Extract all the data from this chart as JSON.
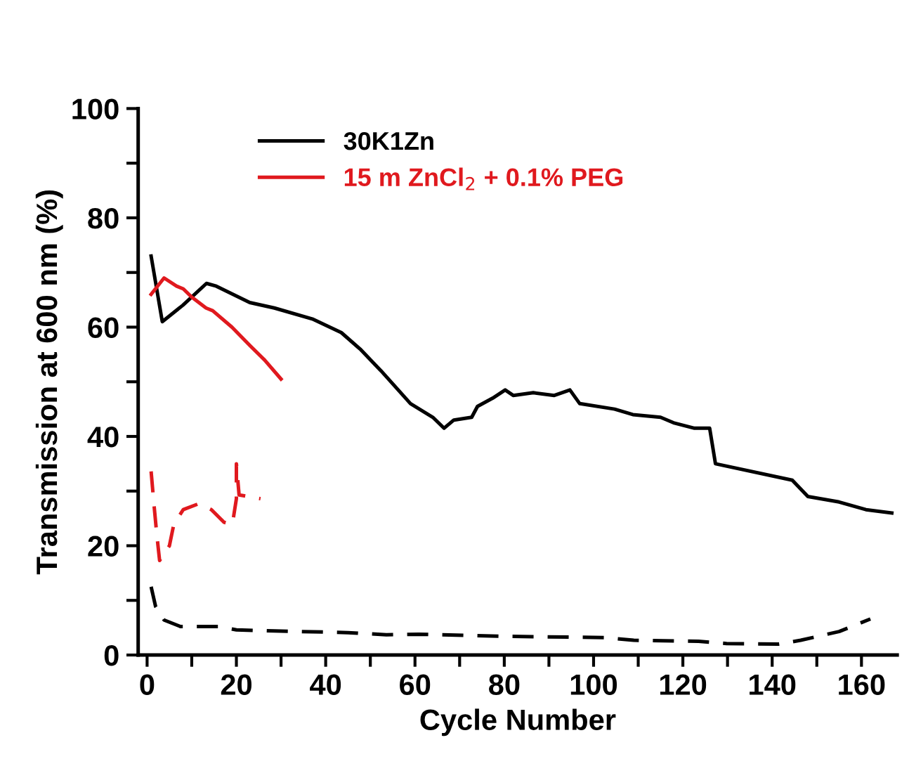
{
  "chart_data": {
    "type": "line",
    "xlabel": "Cycle Number",
    "ylabel": "Transmission at 600 nm (%)",
    "xlim": [
      -2,
      168
    ],
    "ylim": [
      0,
      100
    ],
    "xticks": [
      0,
      {
        "value": 10,
        "label": null
      },
      20,
      {
        "value": 30,
        "label": null
      },
      40,
      {
        "value": 50,
        "label": null
      },
      60,
      {
        "value": 70,
        "label": null
      },
      80,
      {
        "value": 90,
        "label": null
      },
      100,
      {
        "value": 110,
        "label": null
      },
      120,
      {
        "value": 130,
        "label": null
      },
      140,
      {
        "value": 150,
        "label": null
      },
      160
    ],
    "yticks": [
      0,
      {
        "value": 10,
        "label": null
      },
      20,
      {
        "value": 30,
        "label": null
      },
      40,
      {
        "value": 50,
        "label": null
      },
      60,
      {
        "value": 70,
        "label": null
      },
      80,
      {
        "value": 90,
        "label": null
      },
      100
    ],
    "grid": false,
    "legend": "top",
    "marker": "none",
    "series": [
      {
        "name": "30K1Zn",
        "color": "#000000",
        "line_style": "solid",
        "x": [
          0.9,
          3.4,
          8,
          13.3,
          15.5,
          23,
          28.5,
          37,
          43.5,
          47.7,
          52.4,
          59,
          64,
          66.5,
          68.7,
          72.7,
          74,
          77.4,
          80.2,
          82,
          86.5,
          91.2,
          94.7,
          96.9,
          104.7,
          108.8,
          115,
          117.9,
          122.6,
          126,
          127.3,
          144.5,
          148,
          155,
          161,
          166.8
        ],
        "values": [
          73,
          61,
          64,
          68,
          67.5,
          64.5,
          63.5,
          61.5,
          59,
          56,
          52,
          46,
          43.5,
          41.5,
          43,
          43.5,
          45.5,
          47,
          48.5,
          47.5,
          48,
          47.5,
          48.5,
          46,
          45,
          44,
          43.5,
          42.5,
          41.5,
          41.5,
          35,
          32,
          29,
          28,
          26.6,
          26
        ]
      },
      {
        "name": "15 m ZnCl$_{2}$ + 0.1% PEG",
        "color": "#e0191e",
        "line_style": "solid",
        "x": [
          0.9,
          3.8,
          6.6,
          8.1,
          10,
          13.2,
          14.7,
          19,
          23.2,
          26.3,
          30
        ],
        "values": [
          66,
          69,
          67.5,
          67,
          65.5,
          63.5,
          63,
          60,
          56.5,
          54,
          50.5
        ]
      },
      {
        "color": "#e0191e",
        "line_style": "dashed",
        "x": [
          0.9,
          1.6,
          2.2,
          2.8,
          5,
          6,
          8.1,
          11.6,
          14.4,
          17.2,
          19.1,
          20,
          20,
          20.6,
          25.4
        ],
        "values": [
          33.6,
          27,
          21.8,
          17.3,
          20,
          24,
          26.6,
          27.7,
          26.6,
          24.3,
          23.9,
          28.6,
          35,
          29.3,
          28.6
        ]
      },
      {
        "color": "#000000",
        "line_style": "dashed",
        "x": [
          0.9,
          1.9,
          3.8,
          7.5,
          16,
          20,
          28.5,
          45,
          53.6,
          60.8,
          81.8,
          102.5,
          109,
          123.5,
          129.8,
          141.4,
          146.4,
          155,
          162
        ],
        "values": [
          12.5,
          8.9,
          6.4,
          5.2,
          5.2,
          4.6,
          4.4,
          4.1,
          3.7,
          3.8,
          3.4,
          3.2,
          2.7,
          2.5,
          2.1,
          2.0,
          2.7,
          4.3,
          6.6
        ]
      }
    ]
  }
}
